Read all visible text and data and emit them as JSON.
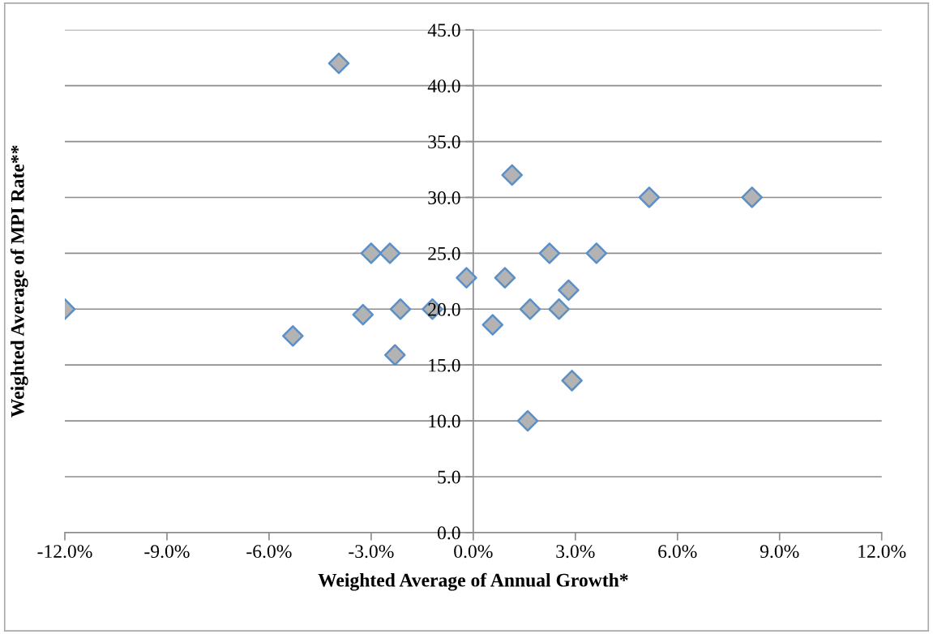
{
  "chart_data": {
    "type": "scatter",
    "xlabel": "Weighted Average of Annual Growth*",
    "ylabel": "Weighted Average of MPI Rate**",
    "x": [
      -12.0,
      -5.3,
      -3.95,
      -3.24,
      -3.0,
      -2.45,
      -2.3,
      -2.14,
      -1.2,
      -0.2,
      0.57,
      0.93,
      1.14,
      1.6,
      1.67,
      2.24,
      2.52,
      2.8,
      2.9,
      3.62,
      5.17,
      8.19
    ],
    "values": [
      20.0,
      17.6,
      42.0,
      19.5,
      25.0,
      25.0,
      15.9,
      20.0,
      20.0,
      22.8,
      18.6,
      22.8,
      32.0,
      10.0,
      20.0,
      25.0,
      20.0,
      21.7,
      13.6,
      25.0,
      30.0,
      30.0
    ],
    "color": "#b3b3b3",
    "marker": "diamond",
    "xlim": [
      -12,
      12
    ],
    "xticks": [
      {
        "value": -12,
        "label": "-12.0%"
      },
      {
        "value": -9,
        "label": "-9.0%"
      },
      {
        "value": -6,
        "label": "-6.0%"
      },
      {
        "value": -3,
        "label": "-3.0%"
      },
      {
        "value": 0,
        "label": "0.0%"
      },
      {
        "value": 3,
        "label": "3.0%"
      },
      {
        "value": 6,
        "label": "6.0%"
      },
      {
        "value": 9,
        "label": "9.0%"
      },
      {
        "value": 12,
        "label": "12.0%"
      }
    ],
    "ylim": [
      0,
      45
    ],
    "yticks": [
      {
        "value": 0,
        "label": "0.0"
      },
      {
        "value": 5,
        "label": "5.0"
      },
      {
        "value": 10,
        "label": "10.0"
      },
      {
        "value": 15,
        "label": "15.0"
      },
      {
        "value": 20,
        "label": "20.0"
      },
      {
        "value": 25,
        "label": "25.0"
      },
      {
        "value": 30,
        "label": "30.0"
      },
      {
        "value": 35,
        "label": "35.0"
      },
      {
        "value": 40,
        "label": "40.0"
      },
      {
        "value": 45,
        "label": "45.0"
      }
    ],
    "grid": "y"
  }
}
